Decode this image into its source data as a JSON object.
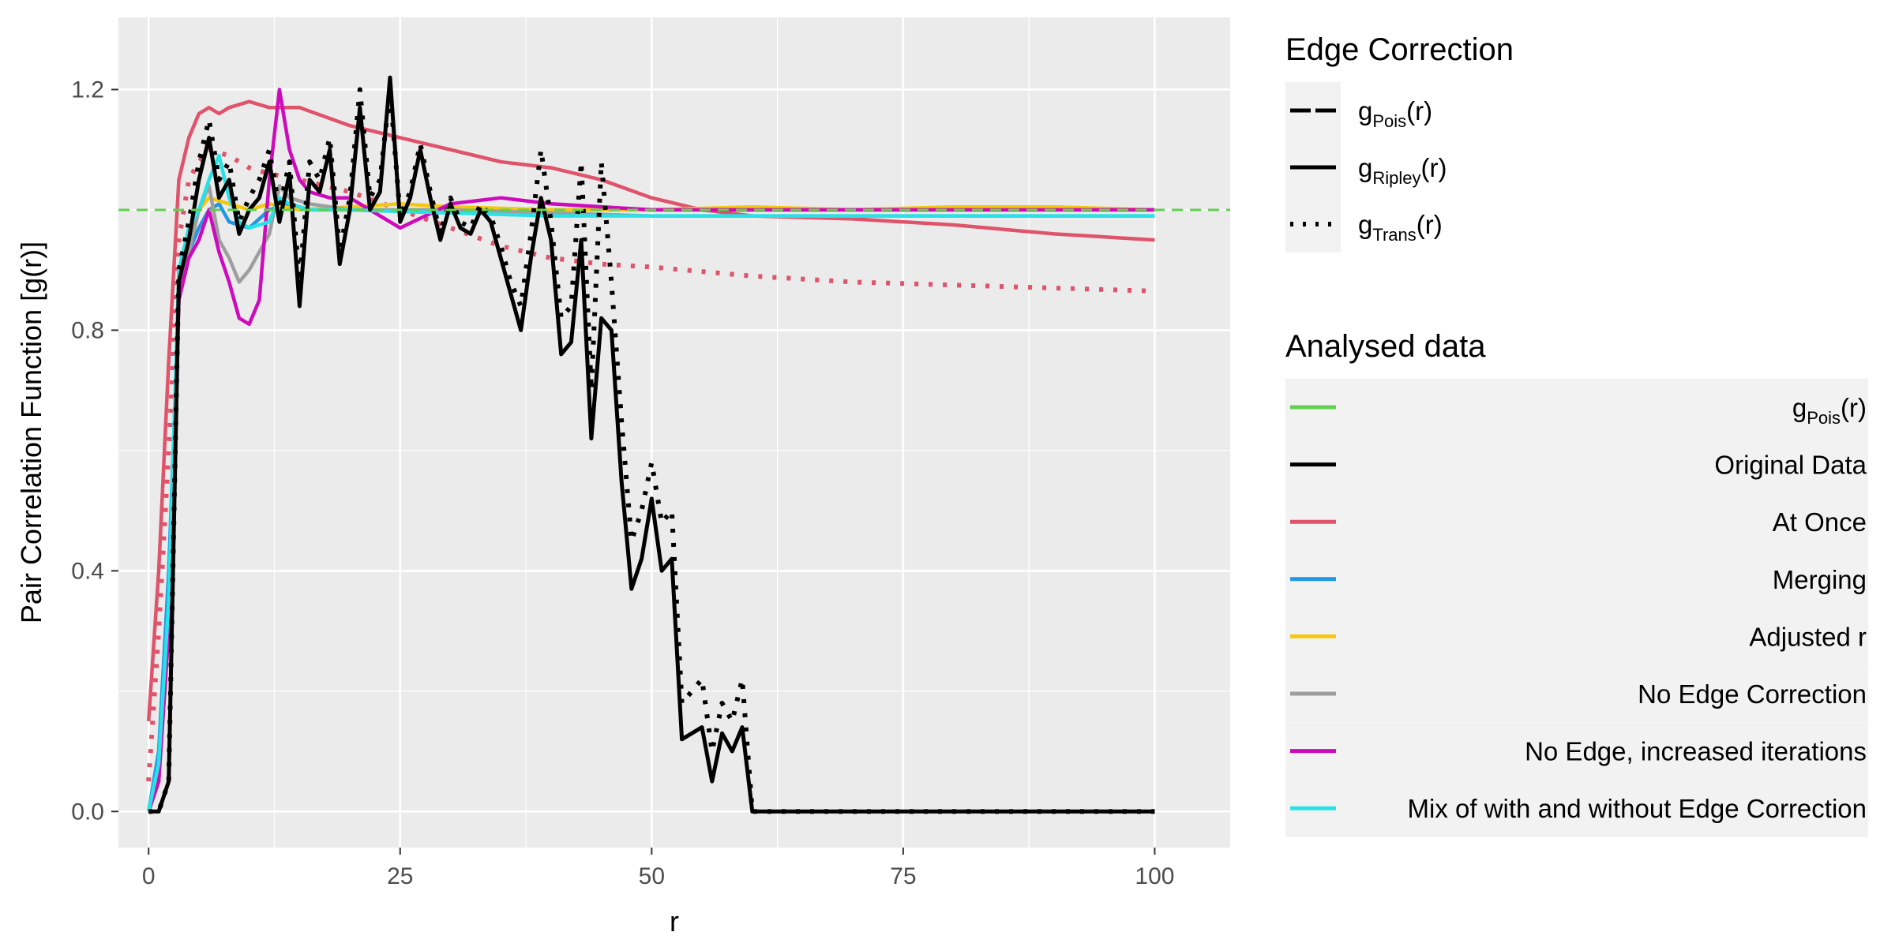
{
  "chart_data": {
    "type": "line",
    "title": "",
    "xlabel": "r",
    "ylabel": "Pair Correlation Function [g(r)]",
    "xlim": [
      0,
      100
    ],
    "ylim": [
      0,
      1.2
    ],
    "x_ticks": [
      0,
      25,
      50,
      75,
      100
    ],
    "y_ticks": [
      0.0,
      0.4,
      0.8,
      1.2
    ],
    "x_tick_labels": [
      "0",
      "25",
      "50",
      "75",
      "100"
    ],
    "y_tick_labels": [
      "0.0",
      "0.4",
      "0.8",
      "1.2"
    ],
    "grid": true,
    "reference_line": {
      "y": 1.0,
      "style": "dashed",
      "color": "#61D04F"
    },
    "legend_placement": "right",
    "legend_edge": {
      "title": "Edge Correction",
      "items": [
        {
          "main": "g",
          "sub": "Pois",
          "suffix": "(r)",
          "style": "longdash"
        },
        {
          "main": "g",
          "sub": "Ripley",
          "suffix": "(r)",
          "style": "solid"
        },
        {
          "main": "g",
          "sub": "Trans",
          "suffix": "(r)",
          "style": "dotted"
        }
      ]
    },
    "legend_data": {
      "title": "Analysed data",
      "items": [
        {
          "main": "g",
          "sub": "Pois",
          "suffix": "(r)",
          "color": "#61D04F"
        },
        {
          "label": "Original Data",
          "color": "#000000"
        },
        {
          "label": "At Once",
          "color": "#DF536B"
        },
        {
          "label": "Merging",
          "color": "#2297E6"
        },
        {
          "label": "Adjusted r",
          "color": "#F5C710"
        },
        {
          "label": "No Edge Correction",
          "color": "#9E9E9E"
        },
        {
          "label": "No Edge, increased iterations",
          "color": "#CD0BBC"
        },
        {
          "label": "Mix of with and without Edge Correction",
          "color": "#28E2E5"
        }
      ]
    },
    "series": [
      {
        "dataset": "Original Data",
        "correction": "Ripley",
        "color": "#000000",
        "style": "solid",
        "x": [
          0,
          1,
          2,
          3,
          4,
          5,
          6,
          7,
          8,
          9,
          10,
          11,
          12,
          13,
          14,
          15,
          16,
          17,
          18,
          19,
          20,
          21,
          22,
          23,
          24,
          25,
          26,
          27,
          28,
          29,
          30,
          31,
          32,
          33,
          34,
          35,
          36,
          37,
          38,
          39,
          40,
          41,
          42,
          43,
          44,
          45,
          46,
          47,
          48,
          49,
          50,
          51,
          52,
          53,
          54,
          55,
          56,
          57,
          58,
          59,
          60,
          65,
          70,
          80,
          90,
          100
        ],
        "y": [
          0,
          0,
          0.05,
          0.88,
          0.95,
          1.05,
          1.12,
          1.02,
          1.05,
          0.96,
          1.0,
          1.02,
          1.08,
          0.98,
          1.06,
          0.84,
          1.05,
          1.03,
          1.1,
          0.91,
          1.0,
          1.17,
          1.0,
          1.03,
          1.22,
          0.98,
          1.02,
          1.1,
          1.02,
          0.95,
          1.01,
          0.97,
          0.96,
          1.0,
          0.98,
          0.92,
          0.86,
          0.8,
          0.92,
          1.02,
          0.95,
          0.76,
          0.78,
          0.95,
          0.62,
          0.82,
          0.8,
          0.55,
          0.37,
          0.42,
          0.52,
          0.4,
          0.42,
          0.12,
          0.13,
          0.14,
          0.05,
          0.13,
          0.1,
          0.14,
          0,
          0,
          0,
          0,
          0,
          0
        ]
      },
      {
        "dataset": "Original Data",
        "correction": "Trans",
        "color": "#000000",
        "style": "dotted",
        "x": [
          0,
          1,
          2,
          3,
          4,
          5,
          6,
          7,
          8,
          9,
          10,
          11,
          12,
          13,
          14,
          15,
          16,
          17,
          18,
          19,
          20,
          21,
          22,
          23,
          24,
          25,
          26,
          27,
          28,
          29,
          30,
          31,
          32,
          33,
          34,
          35,
          36,
          37,
          38,
          39,
          40,
          41,
          42,
          43,
          44,
          45,
          46,
          47,
          48,
          49,
          50,
          51,
          52,
          53,
          54,
          55,
          56,
          57,
          58,
          59,
          60,
          65,
          70,
          80,
          90,
          100
        ],
        "y": [
          0,
          0,
          0.05,
          0.9,
          0.98,
          1.08,
          1.15,
          1.05,
          1.08,
          0.98,
          1.02,
          1.05,
          1.1,
          1.0,
          1.08,
          0.88,
          1.08,
          1.05,
          1.12,
          0.93,
          1.02,
          1.2,
          1.02,
          1.05,
          1.2,
          0.99,
          1.03,
          1.11,
          1.03,
          0.96,
          1.02,
          0.98,
          0.97,
          1.01,
          0.99,
          0.94,
          0.88,
          0.84,
          0.96,
          1.1,
          0.98,
          0.82,
          0.84,
          1.08,
          0.7,
          1.08,
          0.88,
          0.65,
          0.45,
          0.5,
          0.58,
          0.48,
          0.5,
          0.18,
          0.2,
          0.22,
          0.1,
          0.18,
          0.15,
          0.22,
          0,
          0,
          0,
          0,
          0,
          0
        ]
      },
      {
        "dataset": "At Once",
        "correction": "Ripley",
        "color": "#DF536B",
        "style": "solid",
        "x": [
          0,
          1,
          2,
          3,
          4,
          5,
          6,
          7,
          8,
          10,
          12,
          15,
          20,
          25,
          30,
          35,
          40,
          45,
          50,
          55,
          60,
          70,
          80,
          90,
          95,
          100
        ],
        "y": [
          0.15,
          0.4,
          0.75,
          1.05,
          1.12,
          1.16,
          1.17,
          1.16,
          1.17,
          1.18,
          1.17,
          1.17,
          1.14,
          1.12,
          1.1,
          1.08,
          1.07,
          1.05,
          1.02,
          1.0,
          0.99,
          0.985,
          0.975,
          0.96,
          0.955,
          0.95
        ]
      },
      {
        "dataset": "At Once",
        "correction": "Trans",
        "color": "#DF536B",
        "style": "dotted",
        "x": [
          0,
          1,
          2,
          3,
          4,
          5,
          6,
          8,
          10,
          12,
          15,
          20,
          25,
          30,
          35,
          40,
          45,
          50,
          60,
          70,
          80,
          90,
          100
        ],
        "y": [
          0.05,
          0.3,
          0.6,
          0.95,
          1.05,
          1.08,
          1.1,
          1.09,
          1.07,
          1.06,
          1.05,
          1.03,
          1.0,
          0.97,
          0.94,
          0.92,
          0.91,
          0.905,
          0.89,
          0.88,
          0.875,
          0.87,
          0.865
        ]
      },
      {
        "dataset": "Merging",
        "correction": "Ripley",
        "color": "#2297E6",
        "style": "solid",
        "x": [
          0,
          1,
          2,
          3,
          4,
          5,
          6,
          7,
          8,
          10,
          12,
          14,
          16,
          20,
          30,
          40,
          50,
          60,
          70,
          80,
          90,
          100
        ],
        "y": [
          0,
          0.1,
          0.4,
          0.85,
          0.93,
          0.97,
          1.0,
          1.01,
          0.98,
          0.97,
          1.0,
          1.01,
          1.0,
          1.0,
          0.995,
          1.0,
          1.0,
          1.0,
          1.0,
          1.0,
          1.0,
          1.0
        ]
      },
      {
        "dataset": "Adjusted r",
        "correction": "Ripley",
        "color": "#F5C710",
        "style": "solid",
        "x": [
          0,
          1,
          2,
          3,
          4,
          5,
          6,
          8,
          10,
          12,
          15,
          20,
          25,
          30,
          40,
          50,
          60,
          70,
          80,
          90,
          100
        ],
        "y": [
          0,
          0.05,
          0.3,
          0.85,
          0.95,
          1.0,
          1.02,
          1.01,
          1.0,
          1.01,
          1.0,
          1.005,
          1.01,
          1.005,
          1.0,
          1.0,
          1.005,
          1.0,
          1.005,
          1.005,
          1.0
        ]
      },
      {
        "dataset": "No Edge Correction",
        "correction": "Ripley",
        "color": "#9E9E9E",
        "style": "solid",
        "x": [
          0,
          1,
          2,
          3,
          4,
          5,
          6,
          7,
          8,
          9,
          10,
          11,
          12,
          13,
          14,
          16,
          20,
          25,
          30,
          40,
          50,
          60,
          70,
          80,
          90,
          100
        ],
        "y": [
          0,
          0.05,
          0.3,
          0.85,
          0.93,
          1.0,
          1.04,
          0.95,
          0.92,
          0.88,
          0.9,
          0.93,
          0.96,
          1.04,
          1.02,
          1.01,
          1.0,
          1.0,
          1.0,
          0.995,
          0.99,
          0.99,
          0.99,
          0.99,
          0.99,
          0.99
        ]
      },
      {
        "dataset": "No Edge, increased iterations",
        "correction": "Ripley",
        "color": "#CD0BBC",
        "style": "solid",
        "x": [
          0,
          1,
          2,
          3,
          4,
          5,
          6,
          7,
          8,
          9,
          10,
          11,
          12,
          13,
          14,
          15,
          16,
          18,
          20,
          25,
          30,
          35,
          40,
          50,
          60,
          70,
          80,
          90,
          100
        ],
        "y": [
          0,
          0.05,
          0.3,
          0.85,
          0.92,
          0.95,
          1.0,
          0.93,
          0.88,
          0.82,
          0.81,
          0.85,
          1.05,
          1.2,
          1.1,
          1.05,
          1.03,
          1.02,
          1.02,
          0.97,
          1.01,
          1.02,
          1.01,
          1.0,
          1.0,
          1.0,
          1.0,
          1.0,
          1.0
        ]
      },
      {
        "dataset": "Mix of with and without Edge Correction",
        "correction": "Ripley",
        "color": "#28E2E5",
        "style": "solid",
        "x": [
          0,
          1,
          2,
          3,
          4,
          5,
          6,
          7,
          8,
          9,
          10,
          12,
          13,
          14,
          16,
          20,
          30,
          40,
          50,
          60,
          70,
          80,
          90,
          100
        ],
        "y": [
          0,
          0.08,
          0.35,
          0.9,
          0.97,
          1.0,
          1.05,
          1.09,
          1.02,
          0.98,
          0.97,
          0.98,
          1.02,
          1.01,
          1.0,
          1.0,
          0.995,
          0.99,
          0.99,
          0.99,
          0.99,
          0.99,
          0.99,
          0.99
        ]
      }
    ]
  }
}
